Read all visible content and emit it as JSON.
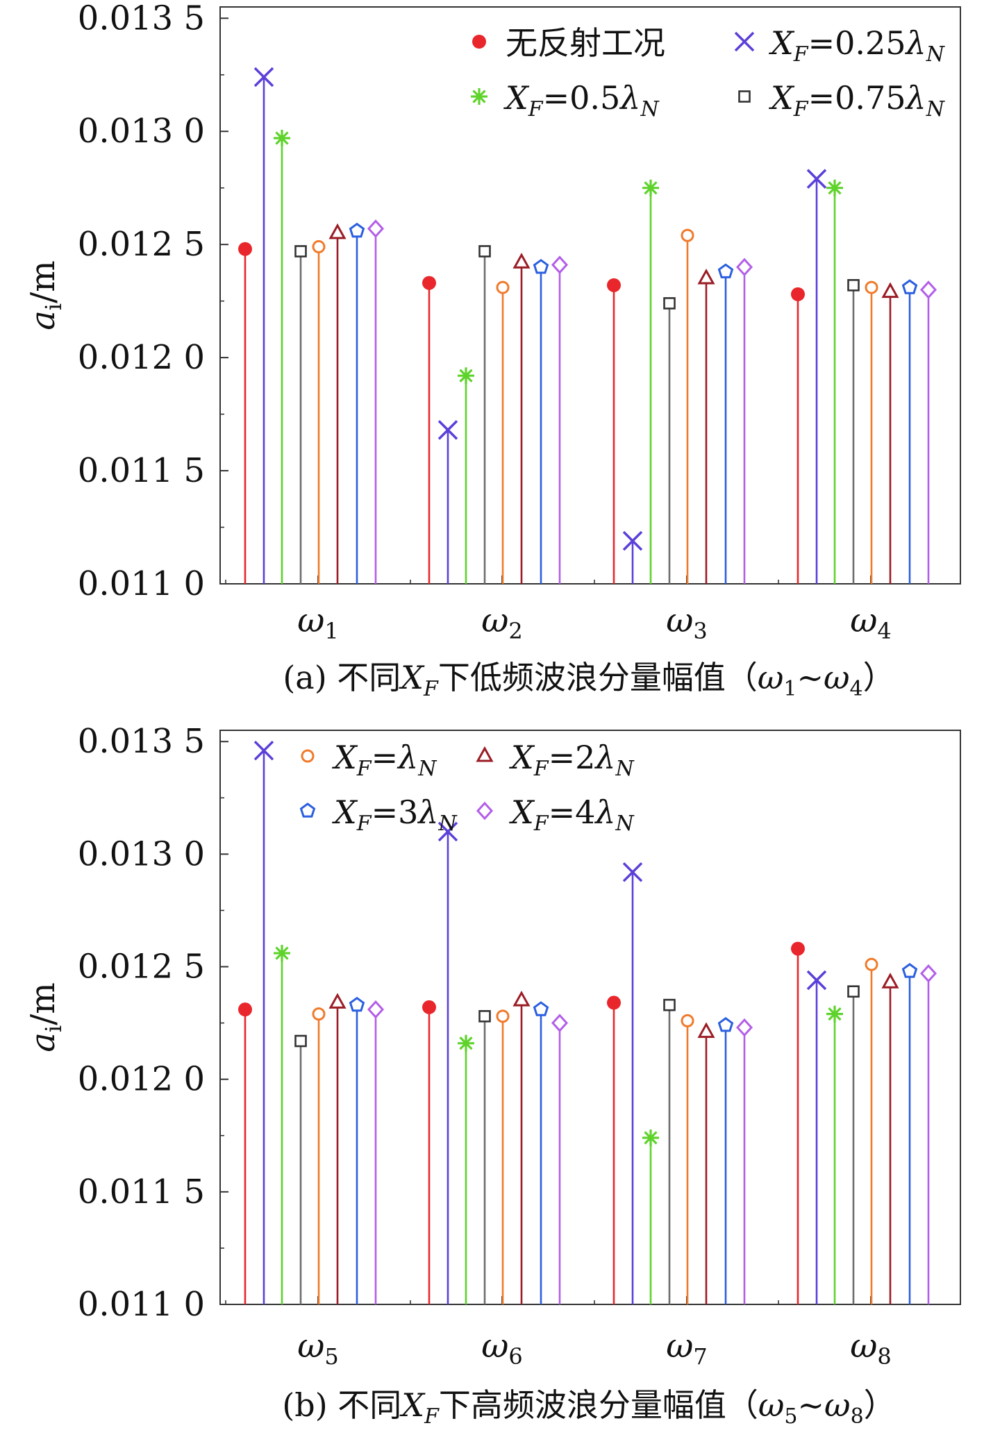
{
  "chart_data": [
    {
      "type": "stem",
      "caption": "(a) 不同X_F下低频波浪分量幅值（ω1~ω4）",
      "caption_parts": {
        "pre": "(a) 不同",
        "x": "X",
        "sub": "F",
        "mid": "下低频波浪分量幅值（",
        "w1": "ω",
        "w1s": "1",
        "sep": "~",
        "w2": "ω",
        "w2s": "4",
        "end": "）"
      },
      "ylabel": {
        "main": "a",
        "sub": "i",
        "unit": "/m"
      },
      "ylim": [
        0.011,
        0.01355
      ],
      "yticks": [
        0.011,
        0.0115,
        0.012,
        0.0125,
        0.013,
        0.0135
      ],
      "ytick_labels": [
        "0.011 0",
        "0.011 5",
        "0.012 0",
        "0.012 5",
        "0.013 0",
        "0.013 5"
      ],
      "categories": [
        {
          "sym": "ω",
          "sub": "1"
        },
        {
          "sym": "ω",
          "sub": "2"
        },
        {
          "sym": "ω",
          "sub": "3"
        },
        {
          "sym": "ω",
          "sub": "4"
        }
      ],
      "legend_position": "top-right",
      "legend": [
        {
          "series": "no_reflection",
          "label": "无反射工况"
        },
        {
          "series": "xf_025",
          "x": "X",
          "sub": "F",
          "eq": "=0.25",
          "lam": "λ",
          "lsub": "N"
        },
        {
          "series": "xf_05",
          "x": "X",
          "sub": "F",
          "eq": "=0.5",
          "lam": "λ",
          "lsub": "N"
        },
        {
          "series": "xf_075",
          "x": "X",
          "sub": "F",
          "eq": "=0.75",
          "lam": "λ",
          "lsub": "N"
        }
      ],
      "series": [
        {
          "key": "no_reflection",
          "name": "无反射工况",
          "color": "#e8262b",
          "marker": "dot",
          "values": [
            0.01248,
            0.01233,
            0.01232,
            0.01228
          ]
        },
        {
          "key": "xf_025",
          "name": "X_F=0.25λ_N",
          "color": "#5b3fd9",
          "marker": "x",
          "values": [
            0.01324,
            0.01168,
            0.01119,
            0.01279
          ]
        },
        {
          "key": "xf_05",
          "name": "X_F=0.5λ_N",
          "color": "#5ed32b",
          "marker": "asterisk",
          "values": [
            0.01297,
            0.01192,
            0.01275,
            0.01275
          ]
        },
        {
          "key": "xf_075",
          "name": "X_F=0.75λ_N",
          "color": "#6d6d6d",
          "marker": "square",
          "values": [
            0.01247,
            0.01247,
            0.01224,
            0.01232
          ]
        },
        {
          "key": "xf_1",
          "name": "X_F=λ_N",
          "color": "#f07a2a",
          "marker": "circle",
          "values": [
            0.01249,
            0.01231,
            0.01254,
            0.01231
          ]
        },
        {
          "key": "xf_2",
          "name": "X_F=2λ_N",
          "color": "#9b1c25",
          "marker": "triangle",
          "values": [
            0.01255,
            0.01242,
            0.01235,
            0.01229
          ]
        },
        {
          "key": "xf_3",
          "name": "X_F=3λ_N",
          "color": "#2a5fe0",
          "marker": "pentagon",
          "values": [
            0.01256,
            0.0124,
            0.01238,
            0.01231
          ]
        },
        {
          "key": "xf_4",
          "name": "X_F=4λ_N",
          "color": "#b35ee8",
          "marker": "diamond",
          "values": [
            0.01257,
            0.01241,
            0.0124,
            0.0123
          ]
        }
      ]
    },
    {
      "type": "stem",
      "caption": "(b) 不同X_F下高频波浪分量幅值（ω5~ω8）",
      "caption_parts": {
        "pre": "(b) 不同",
        "x": "X",
        "sub": "F",
        "mid": "下高频波浪分量幅值（",
        "w1": "ω",
        "w1s": "5",
        "sep": "~",
        "w2": "ω",
        "w2s": "8",
        "end": "）"
      },
      "ylabel": {
        "main": "a",
        "sub": "i",
        "unit": "/m"
      },
      "ylim": [
        0.011,
        0.01355
      ],
      "yticks": [
        0.011,
        0.0115,
        0.012,
        0.0125,
        0.013,
        0.0135
      ],
      "ytick_labels": [
        "0.011 0",
        "0.011 5",
        "0.012 0",
        "0.012 5",
        "0.013 0",
        "0.013 5"
      ],
      "categories": [
        {
          "sym": "ω",
          "sub": "5"
        },
        {
          "sym": "ω",
          "sub": "6"
        },
        {
          "sym": "ω",
          "sub": "7"
        },
        {
          "sym": "ω",
          "sub": "8"
        }
      ],
      "legend_position": "top",
      "legend": [
        {
          "series": "xf_1",
          "x": "X",
          "sub": "F",
          "eq": "=",
          "lam": "λ",
          "lsub": "N"
        },
        {
          "series": "xf_2",
          "x": "X",
          "sub": "F",
          "eq": "=2",
          "lam": "λ",
          "lsub": "N"
        },
        {
          "series": "xf_3",
          "x": "X",
          "sub": "F",
          "eq": "=3",
          "lam": "λ",
          "lsub": "N"
        },
        {
          "series": "xf_4",
          "x": "X",
          "sub": "F",
          "eq": "=4",
          "lam": "λ",
          "lsub": "N"
        }
      ],
      "series": [
        {
          "key": "no_reflection",
          "name": "无反射工况",
          "color": "#e8262b",
          "marker": "dot",
          "values": [
            0.01231,
            0.01232,
            0.01234,
            0.01258
          ]
        },
        {
          "key": "xf_025",
          "name": "X_F=0.25λ_N",
          "color": "#5b3fd9",
          "marker": "x",
          "values": [
            0.01346,
            0.0131,
            0.01292,
            0.01244
          ]
        },
        {
          "key": "xf_05",
          "name": "X_F=0.5λ_N",
          "color": "#5ed32b",
          "marker": "asterisk",
          "values": [
            0.01256,
            0.01216,
            0.01174,
            0.01229
          ]
        },
        {
          "key": "xf_075",
          "name": "X_F=0.75λ_N",
          "color": "#6d6d6d",
          "marker": "square",
          "values": [
            0.01217,
            0.01228,
            0.01233,
            0.01239
          ]
        },
        {
          "key": "xf_1",
          "name": "X_F=λ_N",
          "color": "#f07a2a",
          "marker": "circle",
          "values": [
            0.01229,
            0.01228,
            0.01226,
            0.01251
          ]
        },
        {
          "key": "xf_2",
          "name": "X_F=2λ_N",
          "color": "#9b1c25",
          "marker": "triangle",
          "values": [
            0.01234,
            0.01235,
            0.01221,
            0.01243
          ]
        },
        {
          "key": "xf_3",
          "name": "X_F=3λ_N",
          "color": "#2a5fe0",
          "marker": "pentagon",
          "values": [
            0.01233,
            0.01231,
            0.01224,
            0.01248
          ]
        },
        {
          "key": "xf_4",
          "name": "X_F=4λ_N",
          "color": "#b35ee8",
          "marker": "diamond",
          "values": [
            0.01231,
            0.01225,
            0.01223,
            0.01247
          ]
        }
      ]
    }
  ]
}
